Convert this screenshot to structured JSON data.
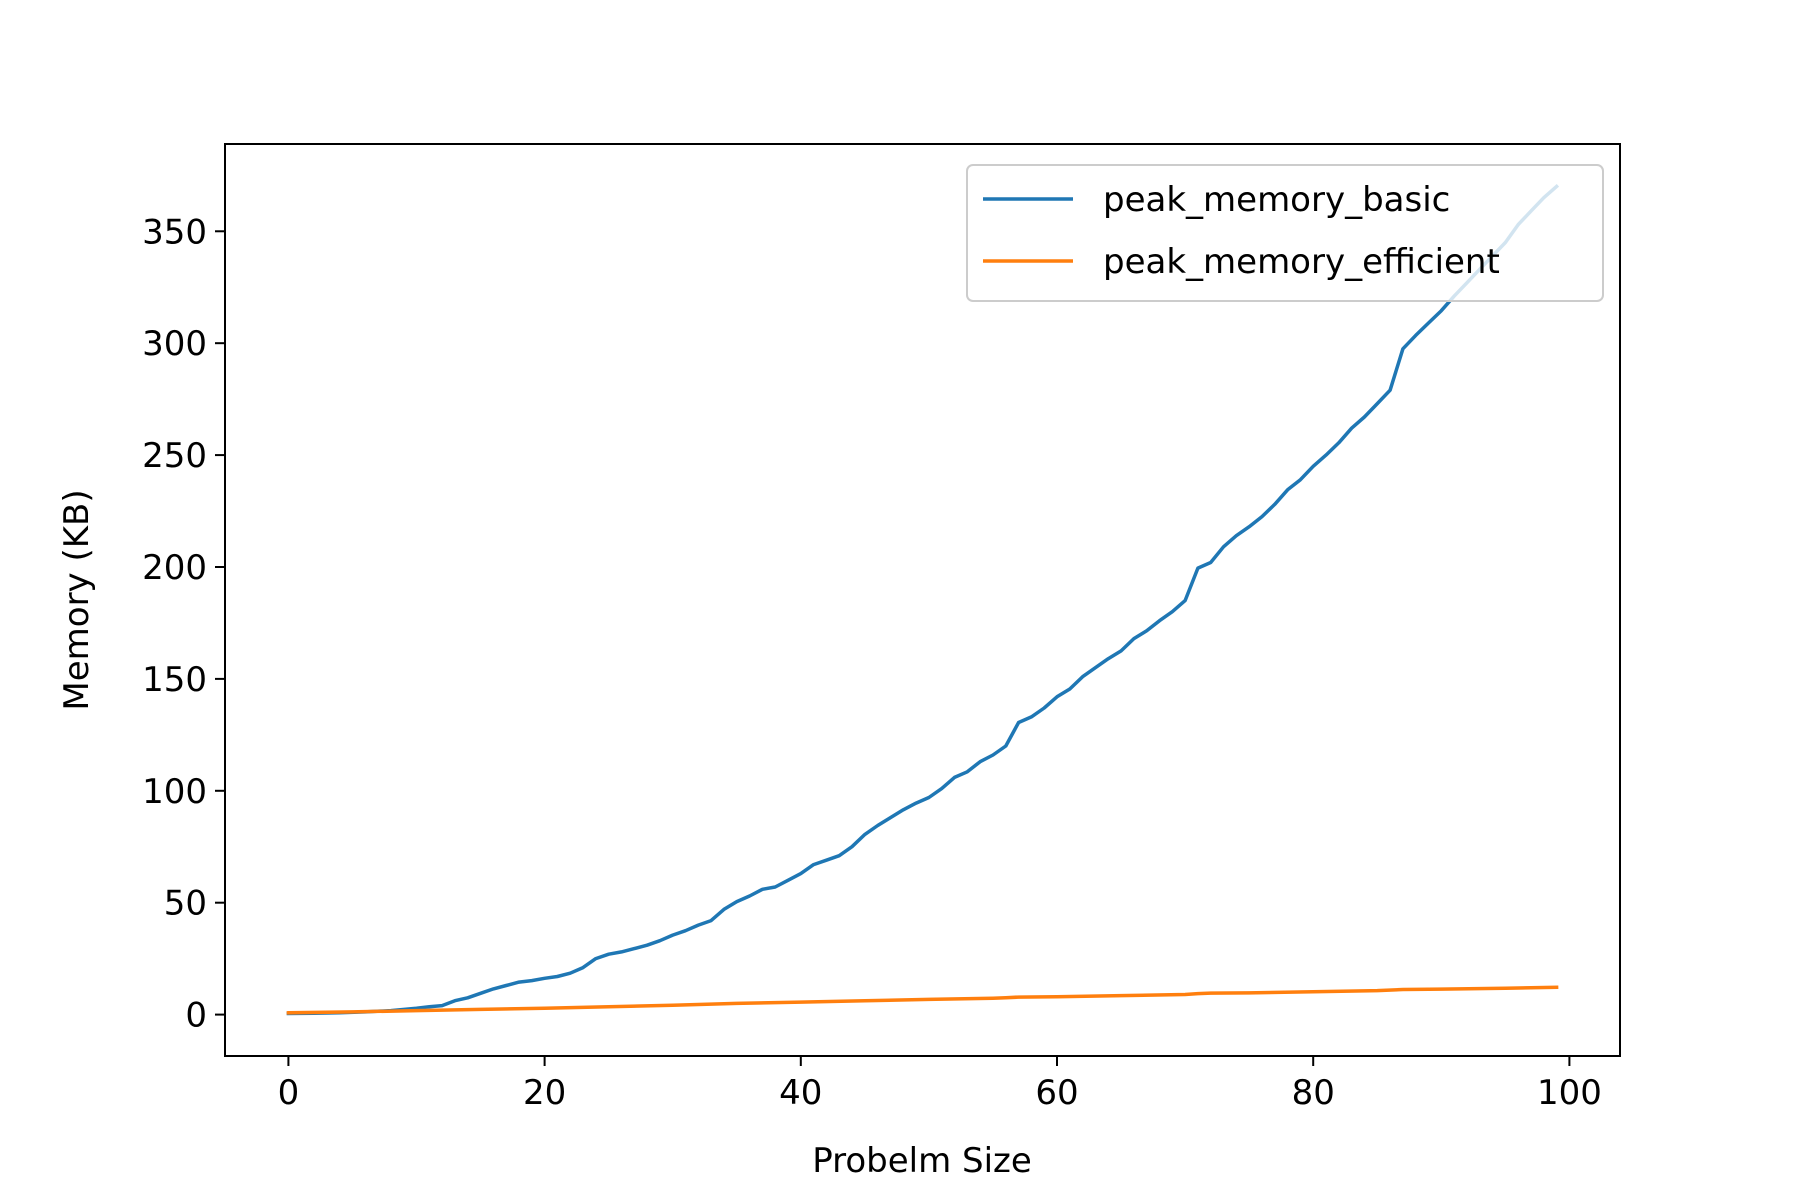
{
  "chart_data": {
    "type": "line",
    "title": "",
    "xlabel": "Probelm Size",
    "ylabel": "Memory (KB)",
    "xlim": [
      -4.95,
      103.95
    ],
    "ylim": [
      -18.5,
      389
    ],
    "xticks": [
      0,
      20,
      40,
      60,
      80,
      100
    ],
    "yticks": [
      0,
      50,
      100,
      150,
      200,
      250,
      300,
      350
    ],
    "grid": false,
    "legend_position": "top-right",
    "series": [
      {
        "name": "peak_memory_basic",
        "color": "#1f77b4",
        "x": [
          0,
          2,
          4,
          6,
          8,
          10,
          11,
          12,
          13,
          14,
          15,
          16,
          17,
          18,
          19,
          20,
          21,
          22,
          23,
          24,
          25,
          26,
          27,
          28,
          29,
          30,
          31,
          32,
          33,
          34,
          35,
          36,
          37,
          38,
          39,
          40,
          41,
          42,
          43,
          44,
          45,
          46,
          47,
          48,
          49,
          50,
          51,
          52,
          53,
          54,
          55,
          56,
          57,
          58,
          59,
          60,
          61,
          62,
          63,
          64,
          65,
          66,
          67,
          68,
          69,
          70,
          71,
          72,
          73,
          74,
          75,
          76,
          77,
          78,
          79,
          80,
          81,
          82,
          83,
          84,
          85,
          86,
          87,
          88,
          89,
          90,
          91,
          92,
          93,
          94,
          95,
          96,
          97,
          98,
          99
        ],
        "y": [
          0.5,
          0.6,
          0.8,
          1.2,
          1.8,
          2.8,
          3.5,
          4.0,
          6.2,
          7.5,
          9.5,
          11.5,
          13,
          14.5,
          15.2,
          16.2,
          17,
          18.5,
          21,
          25,
          27,
          28,
          29.5,
          31,
          33,
          35.5,
          37.5,
          40,
          42,
          47,
          50.5,
          53,
          56,
          57,
          60,
          63,
          67,
          69,
          71,
          75,
          80.5,
          84.5,
          88,
          91.5,
          94.5,
          97,
          101,
          106,
          108.5,
          113,
          116,
          120,
          130.5,
          133,
          137,
          142,
          145.5,
          151,
          155,
          159,
          162.5,
          168,
          171.5,
          176,
          180,
          185,
          199.5,
          202,
          209,
          214,
          218,
          222.5,
          228,
          234.5,
          239,
          245,
          250,
          255.5,
          262,
          267,
          273,
          279,
          297.5,
          303.5,
          309,
          314.5,
          321,
          327,
          333,
          339,
          345,
          353,
          359,
          365,
          370
        ]
      },
      {
        "name": "peak_memory_efficient",
        "color": "#ff7f0e",
        "x": [
          0,
          5,
          10,
          15,
          20,
          25,
          30,
          35,
          40,
          45,
          50,
          55,
          56,
          57,
          60,
          65,
          70,
          71,
          72,
          75,
          80,
          85,
          87,
          90,
          95,
          99
        ],
        "y": [
          0.8,
          1.2,
          1.8,
          2.3,
          2.8,
          3.5,
          4.2,
          5.0,
          5.6,
          6.2,
          6.8,
          7.3,
          7.5,
          7.8,
          8.0,
          8.5,
          9.0,
          9.4,
          9.6,
          9.7,
          10.2,
          10.7,
          11.2,
          11.4,
          11.8,
          12.2
        ]
      }
    ]
  }
}
